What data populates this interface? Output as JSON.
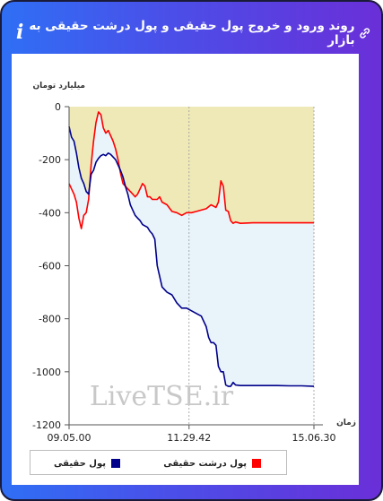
{
  "header": {
    "title": "روند ورود و خروج پول حقیقی و پول درشت حقیقی به بازار",
    "title_icon": "link-icon",
    "info_icon": "info-icon",
    "info_glyph": "i"
  },
  "watermark": "LiveTSE.ir",
  "colors": {
    "real_money": "#00008b",
    "big_real_money": "#ff0000",
    "fill_light": "#e8f3fa",
    "fill_beige": "#efe9b8"
  },
  "chart_data": {
    "type": "line",
    "ylabel": "میلیارد تومان",
    "xlabel": "زمان",
    "ylim": [
      -1200,
      0
    ],
    "yticks": [
      0,
      -200,
      -400,
      -600,
      -800,
      -1000,
      -1200
    ],
    "ytick_labels": [
      "0",
      "-200",
      "-400",
      "-600",
      "-800",
      "-1000",
      "-1200"
    ],
    "xlim": [
      0,
      100
    ],
    "xticks": [
      0,
      49,
      100
    ],
    "xtick_labels": [
      "09.05.00",
      "11.29.42",
      "15.06.30"
    ],
    "legend_position": "bottom",
    "series": [
      {
        "name": "پول حقیقی",
        "color": "#00008b",
        "x": [
          0,
          1,
          2,
          3,
          4,
          5,
          6,
          7,
          8,
          9,
          10,
          11,
          12,
          13,
          14,
          15,
          16,
          17,
          18,
          19,
          20,
          21,
          22,
          23,
          24,
          25,
          26,
          27,
          28,
          29,
          30,
          31,
          32,
          33,
          34,
          35,
          36,
          37,
          38,
          40,
          42,
          44,
          46,
          48,
          50,
          52,
          54,
          56,
          57,
          58,
          59,
          60,
          61,
          62,
          63,
          64,
          65,
          66,
          67,
          68,
          70,
          75,
          80,
          85,
          90,
          95,
          100
        ],
        "values": [
          -75,
          -115,
          -130,
          -175,
          -230,
          -270,
          -290,
          -320,
          -330,
          -255,
          -240,
          -210,
          -195,
          -185,
          -180,
          -185,
          -175,
          -180,
          -190,
          -200,
          -220,
          -240,
          -265,
          -300,
          -330,
          -370,
          -390,
          -410,
          -420,
          -430,
          -445,
          -450,
          -455,
          -470,
          -480,
          -500,
          -600,
          -640,
          -680,
          -700,
          -710,
          -740,
          -760,
          -760,
          -770,
          -780,
          -790,
          -830,
          -870,
          -890,
          -890,
          -900,
          -980,
          -1000,
          -1000,
          -1050,
          -1055,
          -1055,
          -1040,
          -1050,
          -1052,
          -1052,
          -1052,
          -1052,
          -1053,
          -1053,
          -1055
        ]
      },
      {
        "name": "پول درشت حقیقی",
        "color": "#ff0000",
        "x": [
          0,
          1,
          2,
          3,
          4,
          5,
          6,
          7,
          8,
          9,
          10,
          11,
          12,
          13,
          14,
          15,
          16,
          17,
          18,
          19,
          20,
          21,
          22,
          23,
          24,
          25,
          26,
          27,
          28,
          29,
          30,
          31,
          32,
          33,
          34,
          35,
          36,
          37,
          38,
          40,
          42,
          44,
          46,
          48,
          50,
          52,
          54,
          56,
          58,
          60,
          61,
          62,
          63,
          64,
          65,
          66,
          67,
          68,
          70,
          75,
          80,
          85,
          90,
          95,
          100
        ],
        "values": [
          -290,
          -310,
          -330,
          -360,
          -420,
          -460,
          -410,
          -400,
          -350,
          -220,
          -130,
          -60,
          -20,
          -30,
          -80,
          -100,
          -90,
          -110,
          -130,
          -160,
          -200,
          -250,
          -290,
          -300,
          -310,
          -320,
          -330,
          -340,
          -330,
          -310,
          -290,
          -300,
          -340,
          -340,
          -350,
          -350,
          -350,
          -340,
          -360,
          -370,
          -395,
          -400,
          -410,
          -400,
          -400,
          -395,
          -390,
          -385,
          -370,
          -380,
          -360,
          -280,
          -300,
          -390,
          -395,
          -430,
          -440,
          -435,
          -440,
          -438,
          -438,
          -438,
          -438,
          -438,
          -438
        ]
      }
    ]
  },
  "legend": {
    "real_money_label": "پول حقیقی",
    "big_real_money_label": "پول درشت حقیقی"
  }
}
